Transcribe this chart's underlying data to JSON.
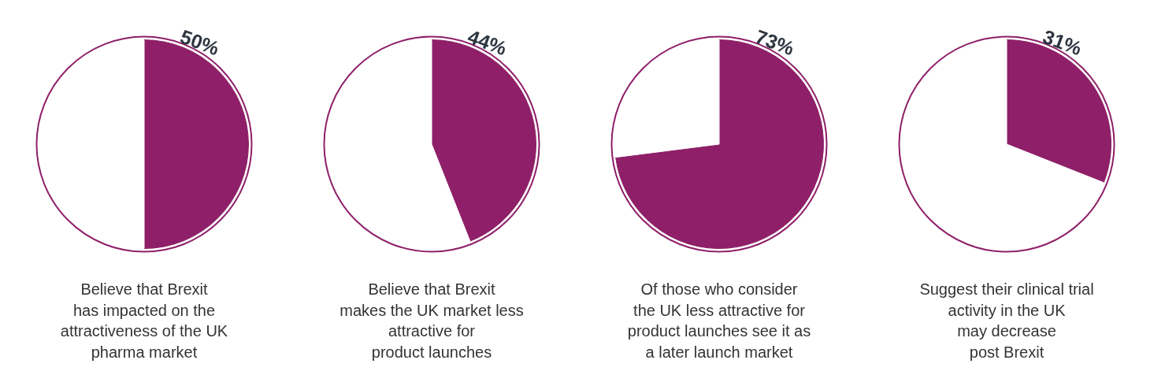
{
  "chart_data": [
    {
      "type": "pie",
      "categories": [
        null,
        null
      ],
      "values": [
        50,
        50
      ],
      "colors": [
        "#8e1f68",
        "#ffffff"
      ],
      "value_labels": [
        "50%",
        null
      ],
      "annotations": [
        "Believe that Brexit\nhas impacted on the\nattractiveness of the UK\npharma market"
      ]
    },
    {
      "type": "pie",
      "categories": [
        null,
        null
      ],
      "values": [
        44,
        56
      ],
      "colors": [
        "#8e1f68",
        "#ffffff"
      ],
      "value_labels": [
        "44%",
        null
      ],
      "annotations": [
        "Believe that Brexit\nmakes the UK market less\nattractive for\nproduct launches"
      ]
    },
    {
      "type": "pie",
      "categories": [
        null,
        null
      ],
      "values": [
        73,
        27
      ],
      "colors": [
        "#8e1f68",
        "#ffffff"
      ],
      "value_labels": [
        "73%",
        null
      ],
      "annotations": [
        "Of those who consider\nthe UK less attractive for\nproduct launches see it as\na later launch market"
      ]
    },
    {
      "type": "pie",
      "categories": [
        null,
        null
      ],
      "values": [
        31,
        69
      ],
      "colors": [
        "#8e1f68",
        "#ffffff"
      ],
      "value_labels": [
        "31%",
        null
      ],
      "annotations": [
        "Suggest their clinical trial\nactivity in the UK\nmay decrease\npost Brexit"
      ]
    }
  ]
}
